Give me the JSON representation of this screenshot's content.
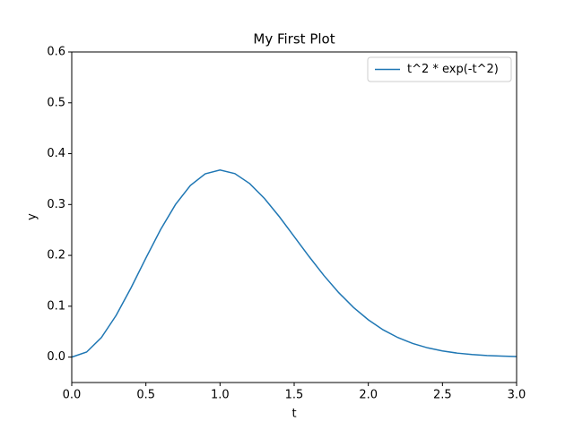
{
  "chart_data": {
    "type": "line",
    "title": "My First Plot",
    "xlabel": "t",
    "ylabel": "y",
    "x": [
      0,
      0.1,
      0.2,
      0.3,
      0.4,
      0.5,
      0.6,
      0.7,
      0.8,
      0.9,
      1.0,
      1.1,
      1.2,
      1.3,
      1.4,
      1.5,
      1.6,
      1.7,
      1.8,
      1.9,
      2.0,
      2.1,
      2.2,
      2.3,
      2.4,
      2.5,
      2.6,
      2.7,
      2.8,
      2.9,
      3.0
    ],
    "series": [
      {
        "name": "t^2 * exp(-t^2)",
        "color": "#1f77b4",
        "values": [
          0,
          0.0099,
          0.0384,
          0.0823,
          0.1363,
          0.1947,
          0.2512,
          0.3002,
          0.3375,
          0.3603,
          0.3679,
          0.3608,
          0.3412,
          0.3118,
          0.2761,
          0.2371,
          0.1979,
          0.1606,
          0.1269,
          0.0976,
          0.0733,
          0.0536,
          0.0383,
          0.0267,
          0.0182,
          0.0121,
          0.0078,
          0.005,
          0.0031,
          0.0019,
          0.0011
        ]
      }
    ],
    "xlim": [
      0,
      3
    ],
    "ylim": [
      -0.05,
      0.6
    ],
    "xticks": [
      {
        "value": 0,
        "label": "0.0"
      },
      0.5,
      {
        "value": 1,
        "label": "1.0"
      },
      1.5,
      {
        "value": 2,
        "label": "2.0"
      },
      2.5,
      {
        "value": 3,
        "label": "3.0"
      }
    ],
    "yticks": [
      {
        "value": 0,
        "label": "0.0"
      },
      0.1,
      0.2,
      0.3,
      0.4,
      0.5,
      0.6
    ],
    "legend": "upper right"
  }
}
